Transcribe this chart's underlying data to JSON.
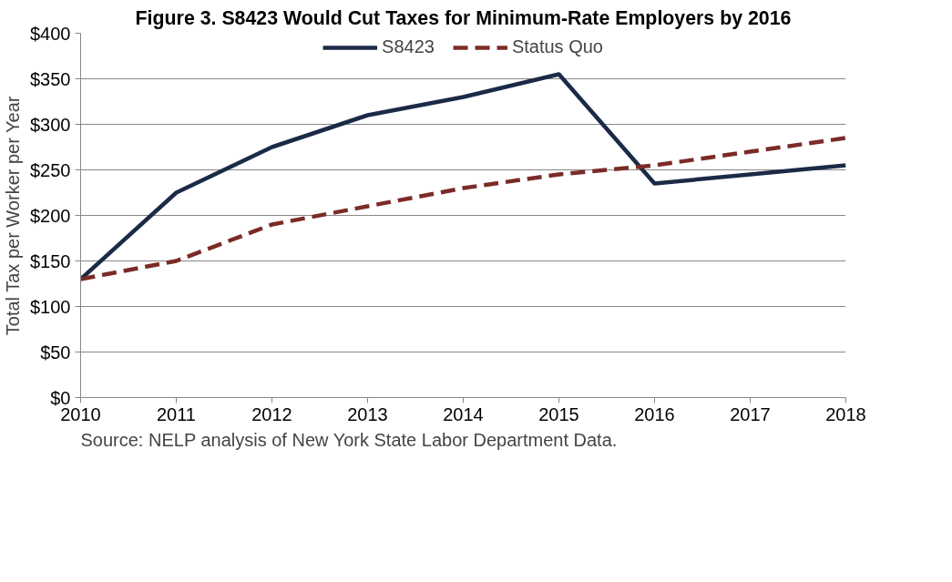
{
  "chart_data": {
    "type": "line",
    "title": "Figure 3. S8423 Would Cut Taxes for Minimum-Rate Employers by 2016",
    "ylabel": "Total Tax per Worker per Year",
    "x": [
      2010,
      2011,
      2012,
      2013,
      2014,
      2015,
      2016,
      2017,
      2018
    ],
    "series": [
      {
        "name": "S8423",
        "color": "#1b2a47",
        "line_style": "solid",
        "values": [
          130,
          225,
          275,
          310,
          330,
          355,
          235,
          245,
          255
        ]
      },
      {
        "name": "Status Quo",
        "color": "#7b2b27",
        "line_style": "dashed",
        "values": [
          130,
          150,
          190,
          210,
          230,
          245,
          255,
          270,
          285
        ]
      }
    ],
    "xlim": [
      2010,
      2018
    ],
    "xticks": [
      2010,
      2011,
      2012,
      2013,
      2014,
      2015,
      2016,
      2017,
      2018
    ],
    "ylim": [
      0,
      400
    ],
    "yticks": [
      {
        "value": 0,
        "label": "$0"
      },
      {
        "value": 50,
        "label": "$50"
      },
      {
        "value": 100,
        "label": "$100"
      },
      {
        "value": 150,
        "label": "$150"
      },
      {
        "value": 200,
        "label": "$200"
      },
      {
        "value": 250,
        "label": "$250"
      },
      {
        "value": 300,
        "label": "$300"
      },
      {
        "value": 350,
        "label": "$350"
      },
      {
        "value": 400,
        "label": "$400"
      }
    ],
    "grid": "y",
    "legend": "top",
    "marker": "none",
    "annotations": [
      "Source: NELP analysis of New York State Labor Department Data."
    ]
  }
}
